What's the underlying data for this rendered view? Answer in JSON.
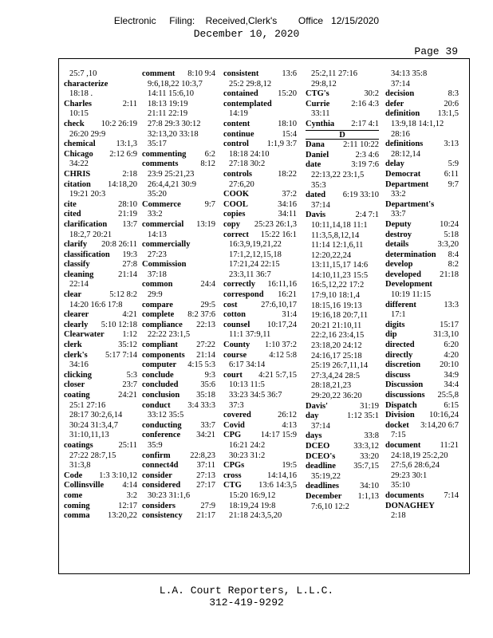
{
  "header": {
    "filing": "Electronic     Filing:    Received,Clerk's        Office   12/15/2020",
    "date": "December 10, 2020",
    "page": "Page 39"
  },
  "footer": {
    "company": "L.A. Court Reporters, L.L.C.",
    "phone": "312-419-9292"
  },
  "columns": [
    [
      {
        "refs": "25:7 ,10"
      },
      {
        "term": "characterize"
      },
      {
        "refs": "18:18 ."
      },
      {
        "term": "Charles",
        "refs": "2:11"
      },
      {
        "refs": "10:15"
      },
      {
        "term": "check",
        "refs": "10:2 26:19"
      },
      {
        "refs": "26:20 29:9"
      },
      {
        "term": "chemical",
        "refs": "13:1,3"
      },
      {
        "term": "Chicago",
        "refs": "2:12 6:9"
      },
      {
        "refs": "34:22"
      },
      {
        "term": "CHRIS",
        "refs": "2:18"
      },
      {
        "term": "citation",
        "refs": "14:18,20"
      },
      {
        "refs": "19:21 20:3"
      },
      {
        "term": "cite",
        "refs": "28:10"
      },
      {
        "term": "cited",
        "refs": "21:19"
      },
      {
        "term": "clarification",
        "refs": "13:7"
      },
      {
        "refs": "18:2,7 20:21"
      },
      {
        "term": "clarify",
        "refs": "20:8 26:11"
      },
      {
        "term": "classification",
        "refs": "19:3"
      },
      {
        "term": "classify",
        "refs": "27:8"
      },
      {
        "term": "cleaning",
        "refs": "21:14"
      },
      {
        "refs": "22:14"
      },
      {
        "term": "clear",
        "refs": "5:12 8:2"
      },
      {
        "refs": "14:20 16:6 17:8"
      },
      {
        "term": "clearer",
        "refs": "4:21"
      },
      {
        "term": "clearly",
        "refs": "5:10 12:18"
      },
      {
        "term": "Clearwater",
        "refs": "1:12"
      },
      {
        "term": "clerk",
        "refs": "35:12"
      },
      {
        "term": "clerk's",
        "refs": "5:17 7:14"
      },
      {
        "refs": "34:16"
      },
      {
        "term": "clicking",
        "refs": "5:3"
      },
      {
        "term": "closer",
        "refs": "23:7"
      },
      {
        "term": "coating",
        "refs": "24:21"
      },
      {
        "refs": "25:1 27:16"
      },
      {
        "refs": "28:17 30:2,6,14"
      },
      {
        "refs": "30:24 31:3,4,7"
      },
      {
        "refs": "31:10,11,13"
      },
      {
        "term": "coatings",
        "refs": "25:11"
      },
      {
        "refs": "27:22 28:7,15"
      },
      {
        "refs": "31:3,8"
      },
      {
        "term": "Code",
        "refs": "1:3 3:10,12"
      },
      {
        "term": "Collinsville",
        "refs": "4:14"
      },
      {
        "term": "come",
        "refs": "3:2"
      },
      {
        "term": "coming",
        "refs": "12:17"
      },
      {
        "term": "comma",
        "refs": "13:20,22"
      }
    ],
    [
      {
        "term": "comment",
        "refs": "8:10 9:4"
      },
      {
        "refs": "9:6,18,22 10:3,7"
      },
      {
        "refs": "14:11 15:6,10"
      },
      {
        "refs": "18:13 19:19"
      },
      {
        "refs": "21:11 22:19"
      },
      {
        "refs": "27:8 29:3 30:12"
      },
      {
        "refs": "32:13,20 33:18"
      },
      {
        "refs": "35:17"
      },
      {
        "term": "commenting",
        "refs": "6:2"
      },
      {
        "term": "comments",
        "refs": "8:12"
      },
      {
        "refs": "23:9 25:21,23"
      },
      {
        "refs": "26:4,4,21 30:9"
      },
      {
        "refs": "35:20"
      },
      {
        "term": "Commerce",
        "refs": "9:7"
      },
      {
        "refs": "33:2"
      },
      {
        "term": "commercial",
        "refs": "13:19"
      },
      {
        "refs": "14:13"
      },
      {
        "term": "commercially"
      },
      {
        "refs": "27:23"
      },
      {
        "term": "Commission"
      },
      {
        "refs": "37:18"
      },
      {
        "term": "common",
        "refs": "24:4"
      },
      {
        "refs": "29:9"
      },
      {
        "term": "compare",
        "refs": "29:5"
      },
      {
        "term": "complete",
        "refs": "8:2 37:6"
      },
      {
        "term": "compliance",
        "refs": "22:13"
      },
      {
        "refs": "22:22 23:1,5"
      },
      {
        "term": "compliant",
        "refs": "27:22"
      },
      {
        "term": "components",
        "refs": "21:14"
      },
      {
        "term": "computer",
        "refs": "4:15 5:3"
      },
      {
        "term": "conclude",
        "refs": "9:3"
      },
      {
        "term": "concluded",
        "refs": "35:6"
      },
      {
        "term": "conclusion",
        "refs": "35:18"
      },
      {
        "term": "conduct",
        "refs": "3:4 33:3"
      },
      {
        "refs": "33:12 35:5"
      },
      {
        "term": "conducting",
        "refs": "33:7"
      },
      {
        "term": "conference",
        "refs": "34:21"
      },
      {
        "refs": "35:9"
      },
      {
        "term": "confirm",
        "refs": "22:8,23"
      },
      {
        "term": "connect4d",
        "refs": "37:11"
      },
      {
        "term": "consider",
        "refs": "27:13"
      },
      {
        "term": "considered",
        "refs": "27:17"
      },
      {
        "refs": "30:23 31:1,6"
      },
      {
        "term": "considers",
        "refs": "27:9"
      },
      {
        "term": "consistency",
        "refs": "21:17"
      }
    ],
    [
      {
        "term": "consistent",
        "refs": "13:6"
      },
      {
        "refs": "25:2 29:8,12"
      },
      {
        "term": "contained",
        "refs": "15:20"
      },
      {
        "term": "contemplated"
      },
      {
        "refs": "14:19"
      },
      {
        "term": "content",
        "refs": "18:10"
      },
      {
        "term": "continue",
        "refs": "15:4"
      },
      {
        "term": "control",
        "refs": "1:1,9 3:7"
      },
      {
        "refs": "18:18 24:10"
      },
      {
        "refs": "27:18 30:2"
      },
      {
        "term": "controls",
        "refs": "18:22"
      },
      {
        "refs": "27:6,20"
      },
      {
        "term": "COOK",
        "refs": "37:2"
      },
      {
        "term": "COOL",
        "refs": "34:16"
      },
      {
        "term": "copies",
        "refs": "34:11"
      },
      {
        "term": "copy",
        "refs": "25:23 26:1,3"
      },
      {
        "term": "correct",
        "refs": "15:22 16:1"
      },
      {
        "refs": "16:3,9,19,21,22"
      },
      {
        "refs": "17:1,2,12,15,18"
      },
      {
        "refs": "17:21,24 22:15"
      },
      {
        "refs": "23:3,11 36:7"
      },
      {
        "term": "correctly",
        "refs": "16:11,16"
      },
      {
        "term": "correspond",
        "refs": "16:21"
      },
      {
        "term": "cost",
        "refs": "27:6,10,17"
      },
      {
        "term": "cotton",
        "refs": "31:4"
      },
      {
        "term": "counsel",
        "refs": "10:17,24"
      },
      {
        "refs": "11:1 37:9,11"
      },
      {
        "term": "County",
        "refs": "1:10 37:2"
      },
      {
        "term": "course",
        "refs": "4:12 5:8"
      },
      {
        "refs": "6:17 34:14"
      },
      {
        "term": "court",
        "refs": "4:21 5:7,15"
      },
      {
        "refs": "10:13 11:5"
      },
      {
        "refs": "33:23 34:5 36:7"
      },
      {
        "refs": "37:3"
      },
      {
        "term": "covered",
        "refs": "26:12"
      },
      {
        "term": "Covid",
        "refs": "4:13"
      },
      {
        "term": "CPG",
        "refs": "14:17 15:9"
      },
      {
        "refs": "16:21 24:2"
      },
      {
        "refs": "30:23 31:2"
      },
      {
        "term": "CPGs",
        "refs": "19:5"
      },
      {
        "term": "cross",
        "refs": "14:14,16"
      },
      {
        "term": "CTG",
        "refs": "13:6 14:3,5"
      },
      {
        "refs": "15:20 16:9,12"
      },
      {
        "refs": "18:19,24 19:8"
      },
      {
        "refs": "21:18 24:3,5,20"
      }
    ],
    [
      {
        "refs": "25:2,11 27:16"
      },
      {
        "refs": "29:8,12"
      },
      {
        "term": "CTG's",
        "refs": "30:2"
      },
      {
        "term": "Currie",
        "refs": "2:16 4:3"
      },
      {
        "refs": "33:11"
      },
      {
        "term": "Cynthia",
        "refs": "2:17 4:1"
      },
      {
        "heading": "D"
      },
      {
        "term": "Dana",
        "refs": "2:11 10:22"
      },
      {
        "term": "Daniel",
        "refs": "2:3 4:6"
      },
      {
        "term": "date",
        "refs": "3:19 7:6"
      },
      {
        "refs": "22:13,22 23:1,5"
      },
      {
        "refs": "35:3"
      },
      {
        "term": "dated",
        "refs": "6:19 33:10"
      },
      {
        "refs": "37:14"
      },
      {
        "term": "Davis",
        "refs": "2:4 7:1"
      },
      {
        "refs": "10:11,14,18 11:1"
      },
      {
        "refs": "11:3,5,8,12,14"
      },
      {
        "refs": "11:14 12:1,6,11"
      },
      {
        "refs": "12:20,22,24"
      },
      {
        "refs": "13:11,15,17 14:6"
      },
      {
        "refs": "14:10,11,23 15:5"
      },
      {
        "refs": "16:5,12,22 17:2"
      },
      {
        "refs": "17:9,10 18:1,4"
      },
      {
        "refs": "18:15,16 19:13"
      },
      {
        "refs": "19:16,18 20:7,11"
      },
      {
        "refs": "20:21 21:10,11"
      },
      {
        "refs": "22:2,16 23:4,15"
      },
      {
        "refs": "23:18,20 24:12"
      },
      {
        "refs": "24:16,17 25:18"
      },
      {
        "refs": "25:19 26:7,11,14"
      },
      {
        "refs": "27:3,4,24 28:5"
      },
      {
        "refs": "28:18,21,23"
      },
      {
        "refs": "29:20,22 36:20"
      },
      {
        "term": "Davis'",
        "refs": "31:19"
      },
      {
        "term": "day",
        "refs": "1:12 35:1"
      },
      {
        "refs": "37:14"
      },
      {
        "term": "days",
        "refs": "33:8"
      },
      {
        "term": "DCEO",
        "refs": "33:3,12"
      },
      {
        "term": "DCEO's",
        "refs": "33:20"
      },
      {
        "term": "deadline",
        "refs": "35:7,15"
      },
      {
        "refs": "35:19,22"
      },
      {
        "term": "deadlines",
        "refs": "34:10"
      },
      {
        "term": "December",
        "refs": "1:1,13"
      },
      {
        "refs": "7:6,10 12:2"
      }
    ],
    [
      {
        "refs": "34:13 35:8"
      },
      {
        "refs": "37:14"
      },
      {
        "term": "decision",
        "refs": "8:3"
      },
      {
        "term": "defer",
        "refs": "20:6"
      },
      {
        "term": "definition",
        "refs": "13:1,5"
      },
      {
        "refs": "13:9,18 14:1,12"
      },
      {
        "refs": "28:16"
      },
      {
        "term": "definitions",
        "refs": "3:13"
      },
      {
        "refs": "28:12,14"
      },
      {
        "term": "delay",
        "refs": "5:9"
      },
      {
        "term": "Democrat",
        "refs": "6:11"
      },
      {
        "term": "Department",
        "refs": "9:7"
      },
      {
        "refs": "33:2"
      },
      {
        "term": "Department's"
      },
      {
        "refs": "33:7"
      },
      {
        "term": "Deputy",
        "refs": "10:24"
      },
      {
        "term": "destroy",
        "refs": "5:18"
      },
      {
        "term": "details",
        "refs": "3:3,20"
      },
      {
        "term": "determination",
        "refs": "8:4"
      },
      {
        "term": "develop",
        "refs": "8:2"
      },
      {
        "term": "developed",
        "refs": "21:18"
      },
      {
        "term": "Development"
      },
      {
        "refs": "10:19 11:15"
      },
      {
        "term": "different",
        "refs": "13:3"
      },
      {
        "refs": "17:1"
      },
      {
        "term": "digits",
        "refs": "15:17"
      },
      {
        "term": "dip",
        "refs": "31:3,10"
      },
      {
        "term": "directed",
        "refs": "6:20"
      },
      {
        "term": "directly",
        "refs": "4:20"
      },
      {
        "term": "discretion",
        "refs": "20:10"
      },
      {
        "term": "discuss",
        "refs": "34:9"
      },
      {
        "term": "Discussion",
        "refs": "34:4"
      },
      {
        "term": "discussions",
        "refs": "25:5,8"
      },
      {
        "term": "Dispatch",
        "refs": "6:15"
      },
      {
        "term": "Division",
        "refs": "10:16,24"
      },
      {
        "term": "docket",
        "refs": "3:14,20 6:7"
      },
      {
        "refs": "7:15"
      },
      {
        "term": "document",
        "refs": "11:21"
      },
      {
        "refs": "24:18,19 25:2,20"
      },
      {
        "refs": "27:5,6 28:6,24"
      },
      {
        "refs": "29:23 30:1"
      },
      {
        "refs": "35:10"
      },
      {
        "term": "documents",
        "refs": "7:14"
      },
      {
        "term": "DONAGHEY"
      },
      {
        "refs": "2:18"
      }
    ]
  ]
}
